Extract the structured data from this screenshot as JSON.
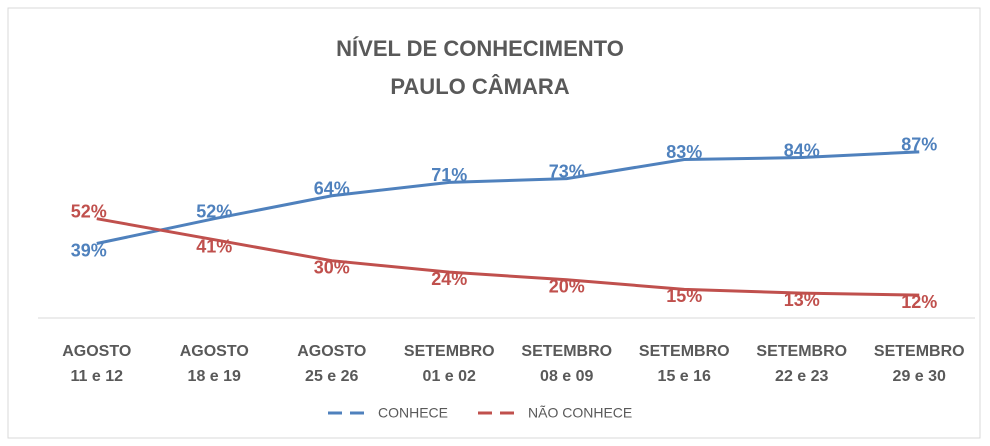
{
  "chart_data": {
    "type": "line",
    "title": [
      "NÍVEL DE CONHECIMENTO",
      "PAULO CÂMARA"
    ],
    "categories": [
      [
        "AGOSTO",
        "11 e 12"
      ],
      [
        "AGOSTO",
        "18 e 19"
      ],
      [
        "AGOSTO",
        "25 e 26"
      ],
      [
        "SETEMBRO",
        "01 e 02"
      ],
      [
        "SETEMBRO",
        "08 e 09"
      ],
      [
        "SETEMBRO",
        "15 e 16"
      ],
      [
        "SETEMBRO",
        "22 e 23"
      ],
      [
        "SETEMBRO",
        "29 e 30"
      ]
    ],
    "series": [
      {
        "name": "CONHECE",
        "color": "#4f81bd",
        "values": [
          39,
          52,
          64,
          71,
          73,
          83,
          84,
          87
        ],
        "value_labels": [
          "39%",
          "52%",
          "64%",
          "71%",
          "73%",
          "83%",
          "84%",
          "87%"
        ]
      },
      {
        "name": "NÃO CONHECE",
        "color": "#c0504d",
        "values": [
          52,
          41,
          30,
          24,
          20,
          15,
          13,
          12
        ],
        "value_labels": [
          "52%",
          "41%",
          "30%",
          "24%",
          "20%",
          "15%",
          "13%",
          "12%"
        ]
      }
    ],
    "ylim": [
      0,
      100
    ],
    "legend": "bottom"
  }
}
